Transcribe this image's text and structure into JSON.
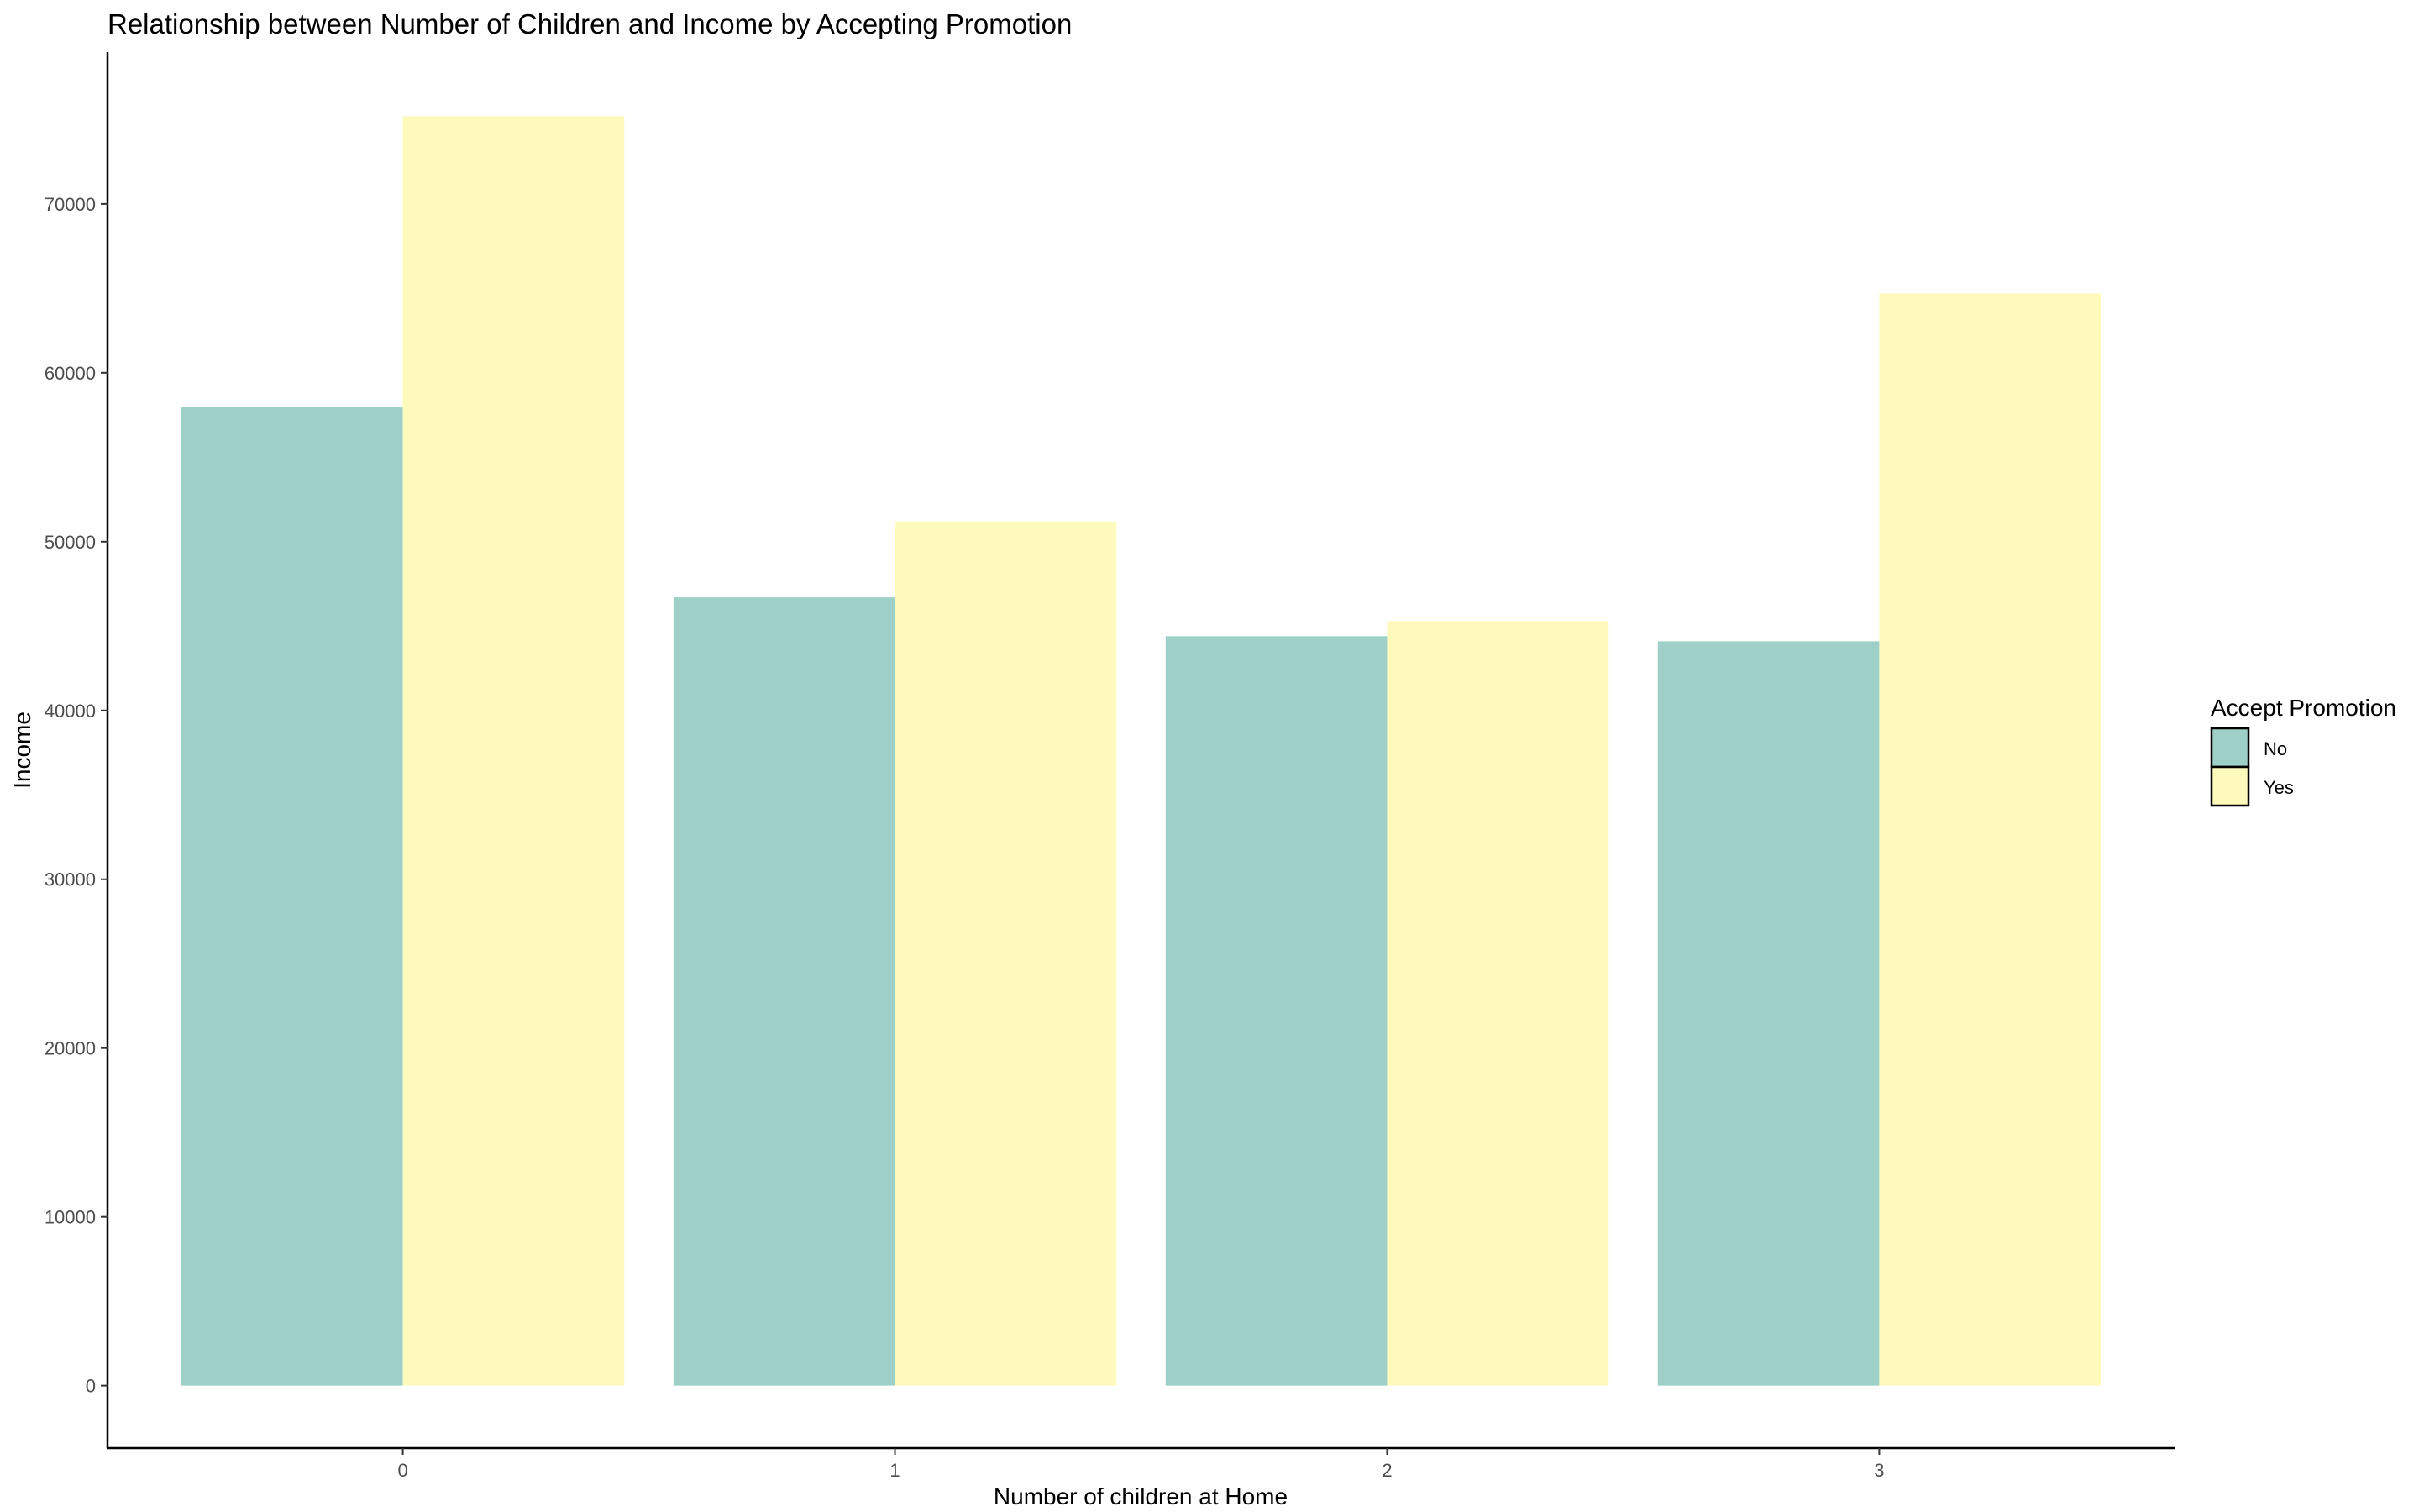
{
  "chart_data": {
    "type": "bar",
    "title": "Relationship between Number of Children and Income by Accepting Promotion",
    "xlabel": "Number of children at Home",
    "ylabel": "Income",
    "categories": [
      "0",
      "1",
      "2",
      "3"
    ],
    "series": [
      {
        "name": "No",
        "color": "#9fd0c7",
        "values": [
          58000,
          46700,
          44400,
          44100
        ]
      },
      {
        "name": "Yes",
        "color": "#fefabc",
        "values": [
          75200,
          51200,
          45300,
          64700
        ]
      }
    ],
    "ylim": [
      -3700,
      79000
    ],
    "yticks": [
      0,
      10000,
      20000,
      30000,
      40000,
      50000,
      60000,
      70000
    ],
    "ytick_labels": [
      "0",
      "10000",
      "20000",
      "30000",
      "40000",
      "50000",
      "60000",
      "70000"
    ],
    "legend": {
      "title": "Accept Promotion",
      "position": "right"
    },
    "grid": false
  }
}
